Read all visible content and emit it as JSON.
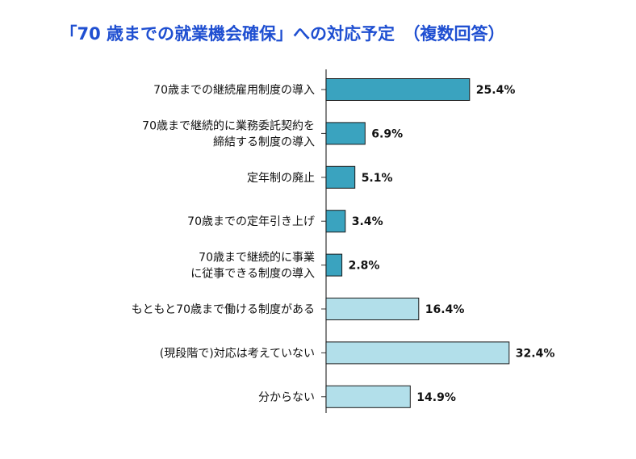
{
  "chart_data": {
    "type": "bar",
    "orientation": "horizontal",
    "title": "「70 歳までの就業機会確保」への対応予定　（複数回答）",
    "categories": [
      [
        "70歳までの継続雇用制度の導入"
      ],
      [
        "70歳まで継続的に業務委託契約を",
        "締結する制度の導入"
      ],
      [
        "定年制の廃止"
      ],
      [
        "70歳までの定年引き上げ"
      ],
      [
        "70歳まで継続的に事業",
        "に従事できる制度の導入"
      ],
      [
        "もともと70歳まで働ける制度がある"
      ],
      [
        "(現段階で)対応は考えていない"
      ],
      [
        "分からない"
      ]
    ],
    "values": [
      25.4,
      6.9,
      5.1,
      3.4,
      2.8,
      16.4,
      32.4,
      14.9
    ],
    "value_labels": [
      "25.4%",
      "6.9%",
      "5.1%",
      "3.4%",
      "2.8%",
      "16.4%",
      "32.4%",
      "14.9%"
    ],
    "bar_colors": [
      "#3aa3bf",
      "#3aa3bf",
      "#3aa3bf",
      "#3aa3bf",
      "#3aa3bf",
      "#b2dfea",
      "#b2dfea",
      "#b2dfea"
    ],
    "bar_stroke": "#1a1a1a",
    "axis_color": "#333333",
    "title_color": "#1f4fd1",
    "grid": false
  }
}
